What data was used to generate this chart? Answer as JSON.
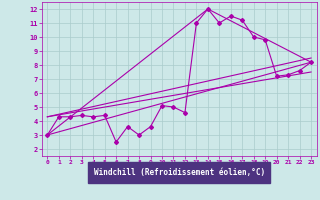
{
  "bg_color": "#cde8e8",
  "axis_bg_color": "#4d3380",
  "line_color": "#aa00aa",
  "grid_color": "#aacccc",
  "xlabel": "Windchill (Refroidissement éolien,°C)",
  "xlim": [
    -0.5,
    23.5
  ],
  "ylim": [
    1.5,
    12.5
  ],
  "xticks": [
    0,
    1,
    2,
    3,
    4,
    5,
    6,
    7,
    8,
    9,
    10,
    11,
    12,
    13,
    14,
    15,
    16,
    17,
    18,
    19,
    20,
    21,
    22,
    23
  ],
  "yticks": [
    2,
    3,
    4,
    5,
    6,
    7,
    8,
    9,
    10,
    11,
    12
  ],
  "line1_x": [
    0,
    1,
    2,
    3,
    4,
    5,
    6,
    7,
    8,
    9,
    10,
    11,
    12,
    13,
    14,
    15,
    16,
    17,
    18,
    19,
    20,
    21,
    22,
    23
  ],
  "line1_y": [
    3.0,
    4.3,
    4.3,
    4.4,
    4.3,
    4.4,
    2.5,
    3.6,
    3.0,
    3.6,
    5.1,
    5.0,
    4.6,
    11.0,
    12.0,
    11.0,
    11.5,
    11.2,
    10.0,
    9.8,
    7.2,
    7.3,
    7.6,
    8.2
  ],
  "line2_x": [
    0,
    23
  ],
  "line2_y": [
    3.0,
    8.2
  ],
  "line3_x": [
    0,
    14,
    23
  ],
  "line3_y": [
    3.0,
    12.0,
    8.2
  ],
  "line4_x": [
    0,
    23
  ],
  "line4_y": [
    4.3,
    8.5
  ],
  "line5_x": [
    0,
    23
  ],
  "line5_y": [
    4.3,
    7.5
  ],
  "tick_color": "#aa00aa",
  "xlabel_color": "#ffffff",
  "xlabel_bg": "#4d3380"
}
